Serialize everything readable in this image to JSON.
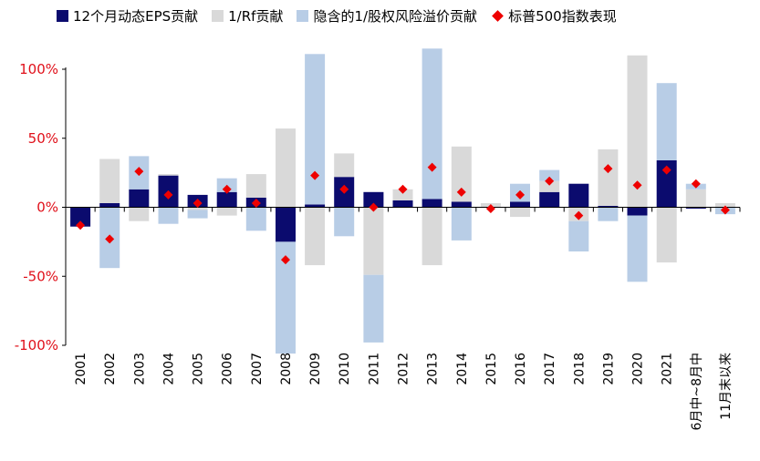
{
  "chart_data": {
    "type": "bar",
    "stacked": true,
    "categories": [
      "2001",
      "2002",
      "2003",
      "2004",
      "2005",
      "2006",
      "2007",
      "2008",
      "2009",
      "2010",
      "2011",
      "2012",
      "2013",
      "2014",
      "2015",
      "2016",
      "2017",
      "2018",
      "2019",
      "2020",
      "2021",
      "6月中~8月中",
      "11月末以来"
    ],
    "series": [
      {
        "name": "12个月动态EPS贡献",
        "kind": "bar",
        "color": "#0b0b6e",
        "values": [
          -14,
          3,
          13,
          23,
          9,
          11,
          7,
          -25,
          2,
          22,
          11,
          5,
          6,
          4,
          0,
          4,
          11,
          17,
          1,
          -6,
          34,
          -1,
          0
        ]
      },
      {
        "name": "1/Rf贡献",
        "kind": "bar",
        "color": "#d9d9d9",
        "values": [
          0,
          32,
          -10,
          1,
          -2,
          -6,
          17,
          57,
          -42,
          17,
          -49,
          8,
          -42,
          40,
          3,
          -7,
          8,
          -10,
          41,
          110,
          -40,
          13,
          3
        ]
      },
      {
        "name": "隐含的1/股权风险溢价贡献",
        "kind": "bar",
        "color": "#b8cde6",
        "values": [
          0,
          -44,
          24,
          -12,
          -6,
          10,
          -17,
          -81,
          109,
          -21,
          -49,
          0,
          109,
          -24,
          0,
          13,
          8,
          -22,
          -10,
          -48,
          56,
          4,
          -5
        ]
      },
      {
        "name": "标普500指数表现",
        "kind": "marker",
        "color": "#ee0000",
        "values": [
          -13,
          -23,
          26,
          9,
          3,
          13,
          3,
          -38,
          23,
          13,
          0,
          13,
          29,
          11,
          -1,
          9,
          19,
          -6,
          28,
          16,
          27,
          17,
          -2
        ]
      }
    ],
    "yaxis": {
      "min": -100,
      "max": 100,
      "ticks": [
        -100,
        -50,
        0,
        50,
        100
      ],
      "tick_labels": [
        "-100%",
        "-50%",
        "0%",
        "50%",
        "100%"
      ]
    },
    "legend_position": "top"
  }
}
